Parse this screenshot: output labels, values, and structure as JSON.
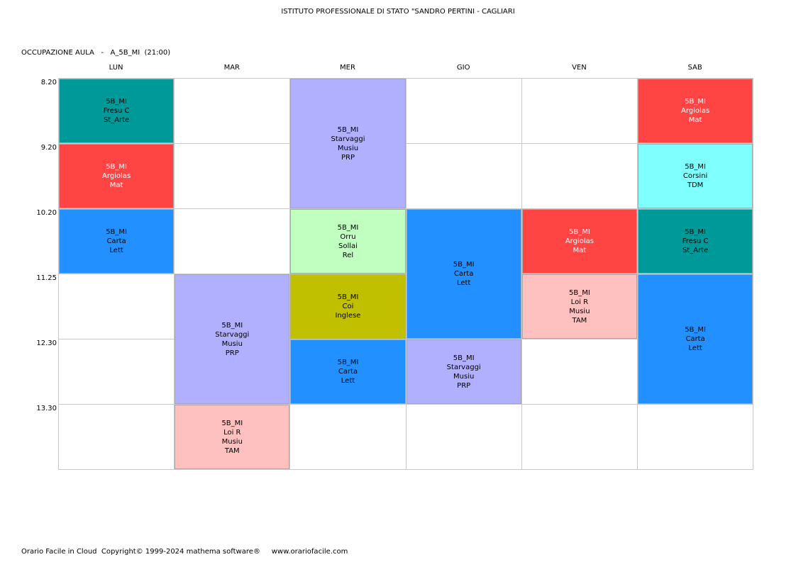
{
  "header": {
    "title": "ISTITUTO PROFESSIONALE DI STATO \"SANDRO PERTINI - CAGLIARI",
    "subtitle": "OCCUPAZIONE AULA   -   A_5B_MI  (21:00)"
  },
  "days": [
    "LUN",
    "MAR",
    "MER",
    "GIO",
    "VEN",
    "SAB"
  ],
  "times": [
    "8.20",
    "9.20",
    "10.20",
    "11.25",
    "12.30",
    "13.30"
  ],
  "colors": {
    "teal": "#009999",
    "red": "#ff4444",
    "blue": "#2290ff",
    "lavender": "#b0b0ff",
    "lightgreen": "#c0ffc0",
    "olive": "#c0c000",
    "pink": "#ffc0c0",
    "cyan": "#80ffff"
  },
  "lessons": [
    {
      "day": 0,
      "start": 0,
      "span": 1,
      "color": "teal",
      "text_color": "#000000",
      "lines": [
        "5B_MI",
        "Fresu C",
        "St_Arte"
      ]
    },
    {
      "day": 0,
      "start": 1,
      "span": 1,
      "color": "red",
      "text_color": "#ffffff",
      "lines": [
        "5B_MI",
        "Argiolas",
        "Mat"
      ]
    },
    {
      "day": 0,
      "start": 2,
      "span": 1,
      "color": "blue",
      "text_color": "#000000",
      "lines": [
        "5B_MI",
        "Carta",
        "Lett"
      ]
    },
    {
      "day": 1,
      "start": 3,
      "span": 2,
      "color": "lavender",
      "text_color": "#000000",
      "lines": [
        "5B_MI",
        "Starvaggi",
        "Musiu",
        "PRP"
      ]
    },
    {
      "day": 1,
      "start": 5,
      "span": 1,
      "color": "pink",
      "text_color": "#000000",
      "lines": [
        "5B_MI",
        "Loi R",
        "Musiu",
        "TAM"
      ]
    },
    {
      "day": 2,
      "start": 0,
      "span": 2,
      "color": "lavender",
      "text_color": "#000000",
      "lines": [
        "5B_MI",
        "Starvaggi",
        "Musiu",
        "PRP"
      ]
    },
    {
      "day": 2,
      "start": 2,
      "span": 1,
      "color": "lightgreen",
      "text_color": "#000000",
      "lines": [
        "5B_MI",
        "Orru",
        "Sollai",
        "Rel"
      ]
    },
    {
      "day": 2,
      "start": 3,
      "span": 1,
      "color": "olive",
      "text_color": "#000000",
      "lines": [
        "5B_MI",
        "Coi",
        "Inglese"
      ]
    },
    {
      "day": 2,
      "start": 4,
      "span": 1,
      "color": "blue",
      "text_color": "#000000",
      "lines": [
        "5B_MI",
        "Carta",
        "Lett"
      ]
    },
    {
      "day": 3,
      "start": 2,
      "span": 2,
      "color": "blue",
      "text_color": "#000000",
      "lines": [
        "5B_MI",
        "Carta",
        "Lett"
      ]
    },
    {
      "day": 3,
      "start": 4,
      "span": 1,
      "color": "lavender",
      "text_color": "#000000",
      "lines": [
        "5B_MI",
        "Starvaggi",
        "Musiu",
        "PRP"
      ]
    },
    {
      "day": 4,
      "start": 2,
      "span": 1,
      "color": "red",
      "text_color": "#ffffff",
      "lines": [
        "5B_MI",
        "Argiolas",
        "Mat"
      ]
    },
    {
      "day": 4,
      "start": 3,
      "span": 1,
      "color": "pink",
      "text_color": "#000000",
      "lines": [
        "5B_MI",
        "Loi R",
        "Musiu",
        "TAM"
      ]
    },
    {
      "day": 5,
      "start": 0,
      "span": 1,
      "color": "red",
      "text_color": "#ffffff",
      "lines": [
        "5B_MI",
        "Argiolas",
        "Mat"
      ]
    },
    {
      "day": 5,
      "start": 1,
      "span": 1,
      "color": "cyan",
      "text_color": "#000000",
      "lines": [
        "5B_MI",
        "Corsini",
        "TDM"
      ]
    },
    {
      "day": 5,
      "start": 2,
      "span": 1,
      "color": "teal",
      "text_color": "#000000",
      "lines": [
        "5B_MI",
        "Fresu C",
        "St_Arte"
      ]
    },
    {
      "day": 5,
      "start": 3,
      "span": 2,
      "color": "blue",
      "text_color": "#000000",
      "lines": [
        "5B_MI",
        "Carta",
        "Lett"
      ]
    }
  ],
  "footer": {
    "text": "Orario Facile in Cloud  Copyright© 1999-2024 mathema software®     www.orariofacile.com"
  }
}
